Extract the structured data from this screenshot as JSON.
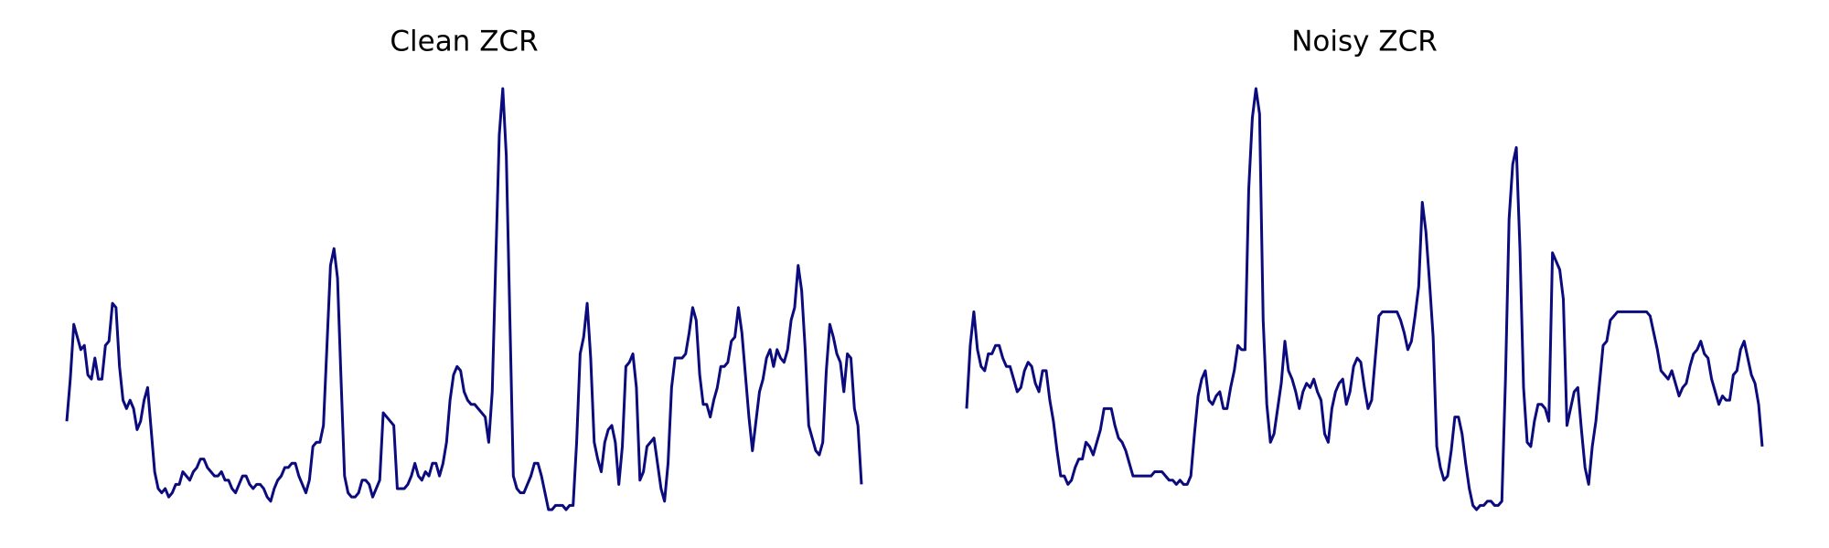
{
  "chart_data": [
    {
      "type": "line",
      "title": "Clean ZCR",
      "color": "#0b0b7e",
      "ylim": [
        0,
        1
      ],
      "values": [
        0.21,
        0.31,
        0.44,
        0.41,
        0.38,
        0.39,
        0.32,
        0.31,
        0.36,
        0.31,
        0.31,
        0.39,
        0.4,
        0.49,
        0.48,
        0.34,
        0.26,
        0.24,
        0.26,
        0.24,
        0.19,
        0.21,
        0.26,
        0.29,
        0.19,
        0.09,
        0.05,
        0.04,
        0.05,
        0.03,
        0.04,
        0.06,
        0.06,
        0.09,
        0.08,
        0.07,
        0.09,
        0.1,
        0.12,
        0.12,
        0.1,
        0.09,
        0.08,
        0.08,
        0.09,
        0.07,
        0.07,
        0.05,
        0.04,
        0.06,
        0.08,
        0.08,
        0.06,
        0.05,
        0.06,
        0.06,
        0.05,
        0.03,
        0.02,
        0.05,
        0.07,
        0.08,
        0.1,
        0.1,
        0.11,
        0.11,
        0.08,
        0.06,
        0.04,
        0.07,
        0.15,
        0.16,
        0.16,
        0.2,
        0.39,
        0.58,
        0.62,
        0.55,
        0.31,
        0.08,
        0.04,
        0.03,
        0.03,
        0.04,
        0.07,
        0.07,
        0.06,
        0.03,
        0.05,
        0.07,
        0.23,
        0.22,
        0.21,
        0.2,
        0.05,
        0.05,
        0.05,
        0.06,
        0.08,
        0.11,
        0.08,
        0.07,
        0.09,
        0.08,
        0.11,
        0.11,
        0.08,
        0.11,
        0.16,
        0.26,
        0.32,
        0.34,
        0.33,
        0.28,
        0.26,
        0.25,
        0.25,
        0.24,
        0.23,
        0.22,
        0.16,
        0.28,
        0.59,
        0.89,
        1,
        0.84,
        0.46,
        0.08,
        0.05,
        0.04,
        0.04,
        0.06,
        0.08,
        0.11,
        0.11,
        0.08,
        0.04,
        0,
        0,
        0.01,
        0.01,
        0.01,
        0,
        0.01,
        0.01,
        0.16,
        0.37,
        0.41,
        0.49,
        0.36,
        0.16,
        0.12,
        0.09,
        0.16,
        0.19,
        0.2,
        0.16,
        0.06,
        0.15,
        0.34,
        0.35,
        0.37,
        0.29,
        0.07,
        0.09,
        0.15,
        0.16,
        0.17,
        0.11,
        0.05,
        0.02,
        0.11,
        0.29,
        0.36,
        0.36,
        0.36,
        0.37,
        0.42,
        0.48,
        0.45,
        0.32,
        0.25,
        0.25,
        0.22,
        0.26,
        0.29,
        0.34,
        0.34,
        0.35,
        0.4,
        0.41,
        0.48,
        0.42,
        0.32,
        0.22,
        0.14,
        0.21,
        0.28,
        0.31,
        0.36,
        0.38,
        0.34,
        0.38,
        0.36,
        0.35,
        0.38,
        0.45,
        0.48,
        0.58,
        0.52,
        0.38,
        0.2,
        0.17,
        0.14,
        0.13,
        0.16,
        0.33,
        0.44,
        0.41,
        0.37,
        0.35,
        0.28,
        0.37,
        0.36,
        0.24,
        0.2,
        0.06
      ]
    },
    {
      "type": "line",
      "title": "Noisy ZCR",
      "color": "#0b0b7e",
      "ylim": [
        0,
        1
      ],
      "values": [
        0.24,
        0.39,
        0.47,
        0.38,
        0.34,
        0.33,
        0.37,
        0.37,
        0.39,
        0.39,
        0.36,
        0.34,
        0.34,
        0.31,
        0.28,
        0.29,
        0.33,
        0.35,
        0.34,
        0.3,
        0.28,
        0.33,
        0.33,
        0.26,
        0.21,
        0.14,
        0.08,
        0.08,
        0.06,
        0.07,
        0.1,
        0.12,
        0.12,
        0.16,
        0.15,
        0.13,
        0.16,
        0.19,
        0.24,
        0.24,
        0.24,
        0.2,
        0.17,
        0.16,
        0.14,
        0.11,
        0.08,
        0.08,
        0.08,
        0.08,
        0.08,
        0.08,
        0.09,
        0.09,
        0.09,
        0.08,
        0.07,
        0.07,
        0.06,
        0.07,
        0.06,
        0.06,
        0.08,
        0.18,
        0.27,
        0.31,
        0.33,
        0.26,
        0.25,
        0.27,
        0.28,
        0.24,
        0.24,
        0.29,
        0.33,
        0.39,
        0.38,
        0.38,
        0.76,
        0.93,
        1,
        0.94,
        0.45,
        0.25,
        0.16,
        0.18,
        0.24,
        0.3,
        0.4,
        0.33,
        0.31,
        0.28,
        0.24,
        0.28,
        0.3,
        0.29,
        0.31,
        0.28,
        0.26,
        0.18,
        0.16,
        0.24,
        0.28,
        0.3,
        0.31,
        0.25,
        0.28,
        0.34,
        0.36,
        0.35,
        0.29,
        0.24,
        0.26,
        0.36,
        0.46,
        0.47,
        0.47,
        0.47,
        0.47,
        0.47,
        0.45,
        0.42,
        0.38,
        0.4,
        0.46,
        0.53,
        0.73,
        0.66,
        0.54,
        0.41,
        0.15,
        0.1,
        0.07,
        0.08,
        0.14,
        0.22,
        0.22,
        0.18,
        0.11,
        0.05,
        0.01,
        0,
        0.01,
        0.01,
        0.02,
        0.02,
        0.01,
        0.01,
        0.02,
        0.31,
        0.69,
        0.82,
        0.86,
        0.62,
        0.29,
        0.16,
        0.15,
        0.21,
        0.25,
        0.25,
        0.24,
        0.21,
        0.61,
        0.59,
        0.57,
        0.5,
        0.2,
        0.24,
        0.28,
        0.29,
        0.19,
        0.1,
        0.06,
        0.15,
        0.21,
        0.3,
        0.39,
        0.4,
        0.45,
        0.46,
        0.47,
        0.47,
        0.47,
        0.47,
        0.47,
        0.47,
        0.47,
        0.47,
        0.47,
        0.46,
        0.42,
        0.38,
        0.33,
        0.32,
        0.31,
        0.33,
        0.3,
        0.27,
        0.29,
        0.3,
        0.34,
        0.37,
        0.38,
        0.4,
        0.37,
        0.36,
        0.31,
        0.28,
        0.25,
        0.27,
        0.26,
        0.26,
        0.32,
        0.33,
        0.38,
        0.4,
        0.36,
        0.32,
        0.3,
        0.25,
        0.15
      ]
    }
  ]
}
